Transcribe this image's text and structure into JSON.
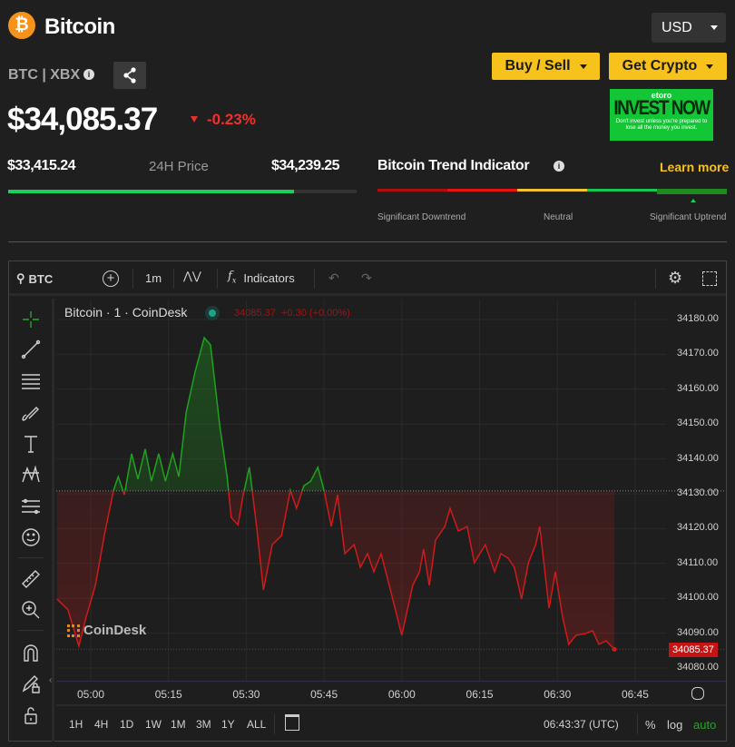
{
  "header": {
    "title": "Bitcoin",
    "symbol": "BTC | XBX",
    "currency": "USD",
    "price": "$34,085.37",
    "change": "-0.23%"
  },
  "buttons": {
    "buy_sell": "Buy / Sell",
    "get_crypto": "Get Crypto"
  },
  "ad": {
    "brand": "etoro",
    "headline": "INVEST NOW",
    "disclaimer": "Don't invest unless you're prepared to lose all the money you invest."
  },
  "range24h": {
    "low": "$33,415.24",
    "label": "24H Price",
    "high": "$34,239.25",
    "position_pct": 82
  },
  "trend": {
    "title": "Bitcoin Trend Indicator",
    "learn_more": "Learn more",
    "labels": [
      "Significant Downtrend",
      "Neutral",
      "Significant Uptrend"
    ],
    "segment_colors": [
      "#b00e0e",
      "#e8130f",
      "#f2c230",
      "#17c653",
      "#1f8a1f"
    ],
    "active_segment": 4
  },
  "toolbar": {
    "symbol": "BTC",
    "interval": "1m",
    "indicators": "Indicators"
  },
  "legend": {
    "title": "Bitcoin · 1 · CoinDesk",
    "values": "34085.37  +0.30 (+0.00%)"
  },
  "watermark": "CoinDesk",
  "footer": {
    "ranges": [
      "1H",
      "4H",
      "1D",
      "1W",
      "1M",
      "3M",
      "1Y",
      "ALL"
    ],
    "clock": "06:43:37 (UTC)",
    "pct": "%",
    "log": "log",
    "auto": "auto"
  },
  "chart_data": {
    "type": "line",
    "xlabel": "",
    "ylabel": "",
    "x_ticks": [
      "05:00",
      "05:15",
      "05:30",
      "05:45",
      "06:00",
      "06:15",
      "06:30",
      "06:45"
    ],
    "y_ticks": [
      34180,
      34170,
      34160,
      34150,
      34140,
      34130,
      34120,
      34110,
      34100,
      34090,
      34080
    ],
    "ylim": [
      34074,
      34188
    ],
    "baseline": 34130.8,
    "last_price_label": "34085.37",
    "colors": {
      "up": "#1fa31f",
      "down": "#d11a1a"
    },
    "x_minutes_from_0500": [
      -6.5,
      -4.4,
      -2.3,
      -0.9,
      0.9,
      2.6,
      4.4,
      5.3,
      6.5,
      7.9,
      9.1,
      10.5,
      11.7,
      13.1,
      14.4,
      15.8,
      17.0,
      18.4,
      20.1,
      21.9,
      23.1,
      24.9,
      26.3,
      27.1,
      28.4,
      29.4,
      30.6,
      32.0,
      33.3,
      35.0,
      36.8,
      38.5,
      39.7,
      41.1,
      42.4,
      43.8,
      45.0,
      46.4,
      47.6,
      49.0,
      50.8,
      52.0,
      53.4,
      54.6,
      56.0,
      57.8,
      60.0,
      62.1,
      63.4,
      64.2,
      65.3,
      66.5,
      68.3,
      69.3,
      70.9,
      72.6,
      74.0,
      76.1,
      77.9,
      79.1,
      80.5,
      81.7,
      83.1,
      84.4,
      85.8,
      86.6,
      88.4,
      89.6,
      91.0,
      92.2,
      93.6,
      95.4,
      96.8,
      98.0,
      99.4,
      101.0
    ],
    "price": [
      34099.8,
      34096.7,
      34086.3,
      34094.6,
      34103.7,
      34118.0,
      34131.0,
      34134.9,
      34129.7,
      34141.5,
      34134.2,
      34142.8,
      34133.6,
      34141.5,
      34133.6,
      34141.5,
      34134.9,
      34153.2,
      34164.9,
      34174.8,
      34172.7,
      34149.3,
      34134.9,
      34123.2,
      34121.1,
      34129.7,
      34137.6,
      34120.6,
      34102.4,
      34115.4,
      34118.0,
      34131.0,
      34125.8,
      34132.3,
      34133.6,
      34137.6,
      34131.0,
      34120.6,
      34129.7,
      34112.8,
      34115.4,
      34108.9,
      34112.8,
      34107.6,
      34112.8,
      34102.4,
      34089.4,
      34103.7,
      34107.6,
      34114.1,
      34103.7,
      34116.7,
      34120.6,
      34125.8,
      34119.3,
      34120.6,
      34110.2,
      34115.4,
      34107.6,
      34112.8,
      34111.5,
      34108.9,
      34099.8,
      34110.2,
      34115.4,
      34120.6,
      34097.2,
      34107.6,
      34094.6,
      34086.8,
      34089.4,
      34089.9,
      34090.7,
      34086.8,
      34087.8,
      34085.37
    ]
  }
}
